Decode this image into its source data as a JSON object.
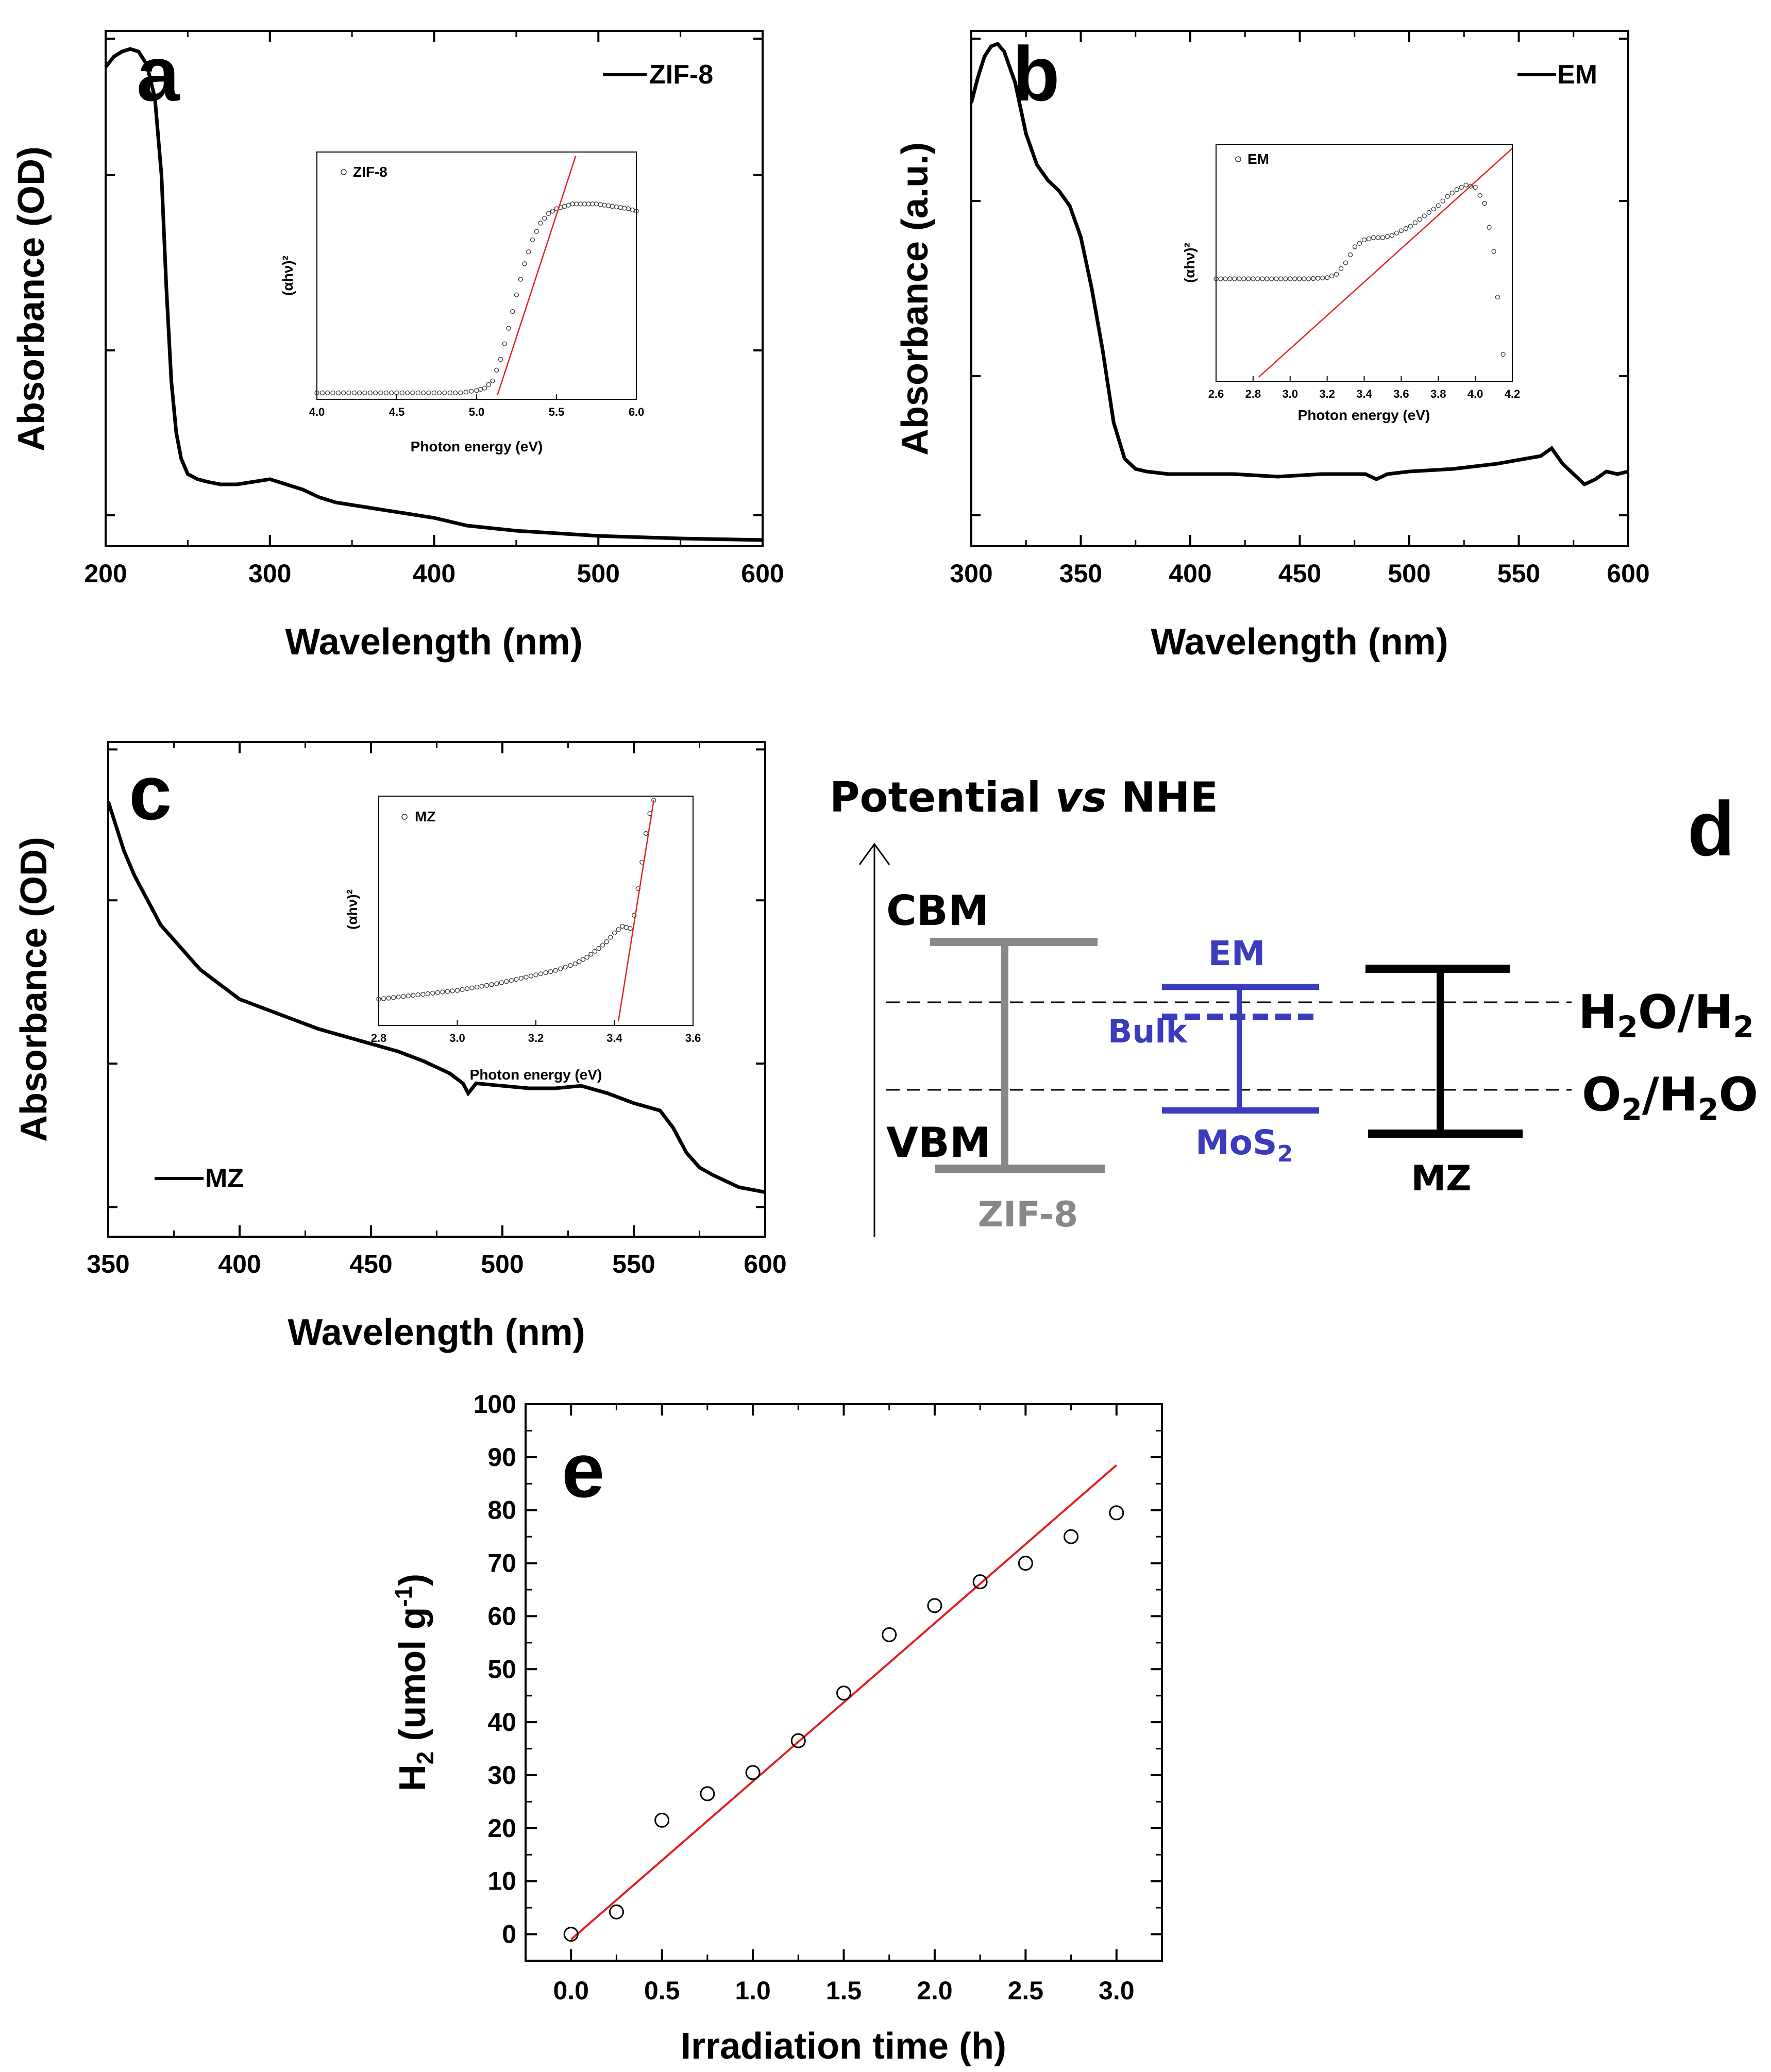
{
  "chart_data": [
    {
      "id": "a",
      "type": "line",
      "panel_label": "a",
      "xlabel": "Wavelength (nm)",
      "ylabel": "Absorbance (OD)",
      "xlim": [
        200,
        600
      ],
      "ylim": [
        0,
        1
      ],
      "xticks": [
        "200",
        "300",
        "400",
        "500",
        "600"
      ],
      "legend": "ZIF-8",
      "x": [
        200,
        205,
        210,
        215,
        220,
        225,
        230,
        234,
        237,
        240,
        243,
        246,
        250,
        256,
        262,
        270,
        280,
        290,
        300,
        310,
        320,
        330,
        340,
        360,
        380,
        400,
        420,
        450,
        500,
        550,
        600
      ],
      "y": [
        0.93,
        0.95,
        0.96,
        0.965,
        0.96,
        0.935,
        0.87,
        0.72,
        0.5,
        0.32,
        0.22,
        0.17,
        0.14,
        0.13,
        0.125,
        0.12,
        0.12,
        0.125,
        0.13,
        0.12,
        0.11,
        0.095,
        0.085,
        0.075,
        0.065,
        0.055,
        0.04,
        0.03,
        0.02,
        0.015,
        0.012
      ],
      "inset": {
        "legend": "ZIF-8",
        "xlabel": "Photon energy (eV)",
        "ylabel": "(αhν)²",
        "xlim": [
          4.0,
          6.0
        ],
        "ylim": [
          0,
          1
        ],
        "xticks": [
          "4.0",
          "4.5",
          "5.0",
          "5.5",
          "6.0"
        ],
        "x": [
          4.0,
          4.1,
          4.2,
          4.3,
          4.4,
          4.5,
          4.6,
          4.7,
          4.8,
          4.9,
          5.0,
          5.05,
          5.1,
          5.15,
          5.2,
          5.25,
          5.3,
          5.35,
          5.4,
          5.45,
          5.5,
          5.55,
          5.6,
          5.65,
          5.7,
          5.75,
          5.8,
          5.85,
          5.9,
          5.95,
          6.0
        ],
        "y": [
          0.01,
          0.01,
          0.01,
          0.01,
          0.01,
          0.01,
          0.01,
          0.01,
          0.01,
          0.01,
          0.02,
          0.03,
          0.06,
          0.15,
          0.28,
          0.42,
          0.55,
          0.65,
          0.72,
          0.76,
          0.78,
          0.79,
          0.8,
          0.8,
          0.8,
          0.8,
          0.795,
          0.79,
          0.785,
          0.78,
          0.77
        ],
        "fit": {
          "x": [
            5.13,
            5.62
          ],
          "y": [
            0,
            1.0
          ]
        }
      }
    },
    {
      "id": "b",
      "type": "line",
      "panel_label": "b",
      "xlabel": "Wavelength (nm)",
      "ylabel": "Absorbance (a.u.)",
      "xlim": [
        300,
        600
      ],
      "ylim": [
        0,
        1
      ],
      "xticks": [
        "300",
        "350",
        "400",
        "450",
        "500",
        "550",
        "600"
      ],
      "legend": "EM",
      "x": [
        300,
        303,
        306,
        309,
        312,
        315,
        320,
        325,
        330,
        335,
        340,
        345,
        350,
        355,
        360,
        365,
        370,
        375,
        380,
        390,
        400,
        420,
        440,
        460,
        480,
        485,
        490,
        500,
        520,
        540,
        560,
        565,
        570,
        575,
        580,
        585,
        590,
        595,
        600
      ],
      "y": [
        0.86,
        0.91,
        0.95,
        0.97,
        0.975,
        0.96,
        0.9,
        0.8,
        0.74,
        0.71,
        0.69,
        0.66,
        0.6,
        0.5,
        0.38,
        0.24,
        0.17,
        0.15,
        0.145,
        0.14,
        0.14,
        0.14,
        0.135,
        0.14,
        0.14,
        0.13,
        0.14,
        0.145,
        0.15,
        0.16,
        0.175,
        0.19,
        0.16,
        0.14,
        0.12,
        0.13,
        0.145,
        0.14,
        0.145
      ],
      "inset": {
        "legend": "EM",
        "xlabel": "Photon energy (eV)",
        "ylabel": "(αhν)²",
        "xlim": [
          2.6,
          4.2
        ],
        "ylim": [
          0,
          1
        ],
        "xticks": [
          "2.6",
          "2.8",
          "3.0",
          "3.2",
          "3.4",
          "3.6",
          "3.8",
          "4.0",
          "4.2"
        ],
        "x": [
          2.6,
          2.7,
          2.8,
          2.9,
          3.0,
          3.1,
          3.2,
          3.25,
          3.3,
          3.35,
          3.4,
          3.45,
          3.5,
          3.55,
          3.6,
          3.65,
          3.7,
          3.75,
          3.8,
          3.85,
          3.9,
          3.95,
          4.0,
          4.05,
          4.1,
          4.12,
          4.15
        ],
        "y": [
          0.43,
          0.43,
          0.43,
          0.43,
          0.43,
          0.43,
          0.435,
          0.45,
          0.5,
          0.57,
          0.6,
          0.61,
          0.61,
          0.62,
          0.64,
          0.66,
          0.69,
          0.72,
          0.75,
          0.79,
          0.82,
          0.84,
          0.83,
          0.76,
          0.55,
          0.35,
          0.1
        ],
        "fit": {
          "x": [
            2.83,
            4.2
          ],
          "y": [
            0,
            1.0
          ]
        }
      }
    },
    {
      "id": "c",
      "type": "line",
      "panel_label": "c",
      "xlabel": "Wavelength (nm)",
      "ylabel": "Absorbance (OD)",
      "xlim": [
        350,
        600
      ],
      "ylim": [
        0,
        1
      ],
      "xticks": [
        "350",
        "400",
        "450",
        "500",
        "550",
        "600"
      ],
      "legend": "MZ",
      "x": [
        350,
        353,
        356,
        360,
        365,
        370,
        375,
        380,
        385,
        390,
        395,
        400,
        410,
        420,
        430,
        440,
        450,
        460,
        470,
        480,
        485,
        487,
        490,
        500,
        510,
        520,
        530,
        540,
        550,
        560,
        565,
        570,
        575,
        580,
        590,
        600
      ],
      "y": [
        0.88,
        0.83,
        0.78,
        0.73,
        0.68,
        0.63,
        0.6,
        0.57,
        0.54,
        0.52,
        0.5,
        0.48,
        0.46,
        0.44,
        0.42,
        0.405,
        0.39,
        0.375,
        0.355,
        0.33,
        0.31,
        0.29,
        0.31,
        0.305,
        0.3,
        0.3,
        0.305,
        0.29,
        0.27,
        0.255,
        0.22,
        0.17,
        0.14,
        0.125,
        0.1,
        0.09
      ],
      "inset": {
        "legend": "MZ",
        "xlabel": "Photon energy (eV)",
        "ylabel": "(αhν)²",
        "xlim": [
          2.8,
          3.6
        ],
        "ylim": [
          0,
          1
        ],
        "xticks": [
          "2.8",
          "3.0",
          "3.2",
          "3.4",
          "3.6"
        ],
        "x": [
          2.8,
          2.85,
          2.9,
          2.95,
          3.0,
          3.05,
          3.1,
          3.15,
          3.2,
          3.25,
          3.3,
          3.33,
          3.36,
          3.38,
          3.4,
          3.42,
          3.44,
          3.45,
          3.46,
          3.47,
          3.48,
          3.49,
          3.5
        ],
        "y": [
          0.1,
          0.11,
          0.12,
          0.13,
          0.14,
          0.155,
          0.17,
          0.19,
          0.21,
          0.23,
          0.26,
          0.29,
          0.33,
          0.36,
          0.4,
          0.43,
          0.42,
          0.48,
          0.6,
          0.72,
          0.85,
          0.94,
          1.0
        ],
        "fit": {
          "x": [
            3.41,
            3.5
          ],
          "y": [
            0,
            1.0
          ]
        }
      }
    },
    {
      "id": "e",
      "type": "scatter",
      "panel_label": "e",
      "xlabel": "Irradiation time (h)",
      "ylabel": "H2 (umol g-1)",
      "xlim": [
        -0.25,
        3.25
      ],
      "ylim": [
        -5,
        100
      ],
      "xticks": [
        "0.0",
        "0.5",
        "1.0",
        "1.5",
        "2.0",
        "2.5",
        "3.0"
      ],
      "yticks": [
        "0",
        "10",
        "20",
        "30",
        "40",
        "50",
        "60",
        "70",
        "80",
        "90",
        "100"
      ],
      "x": [
        0,
        0.25,
        0.5,
        0.75,
        1.0,
        1.25,
        1.5,
        1.75,
        2.0,
        2.25,
        2.5,
        2.75,
        3.0
      ],
      "y": [
        0,
        4.2,
        21.5,
        26.5,
        30.5,
        36.5,
        45.5,
        56.5,
        62,
        66.5,
        70,
        75,
        79.5
      ],
      "fit": {
        "x": [
          0,
          3.0
        ],
        "y": [
          -1,
          88.5
        ]
      }
    }
  ],
  "diagram": {
    "panel_label": "d",
    "title_prefix": "Potential ",
    "title_vs": "vs",
    "title_suffix": " NHE",
    "cbm": "CBM",
    "vbm": "VBM",
    "zif8": "ZIF-8",
    "em": "EM",
    "bulk": "Bulk",
    "mos2_base": "MoS",
    "mos2_sub": "2",
    "mz": "MZ",
    "h2o_h2": {
      "a": "H",
      "s1": "2",
      "b": "O/H",
      "s2": "2"
    },
    "o2_h2o": {
      "a": "O",
      "s1": "2",
      "b": "/H",
      "s2": "2",
      "c": "O"
    },
    "colors": {
      "zif8": "#888888",
      "em": "#3b3bbd",
      "mz": "#000000"
    }
  },
  "e_ylabel_parts": {
    "h": "H",
    "h_sub": "2",
    "unit": " (umol g",
    "exp": "-1",
    "close": ")"
  },
  "colors": {
    "fit": "#e02020",
    "curve": "#000000"
  }
}
